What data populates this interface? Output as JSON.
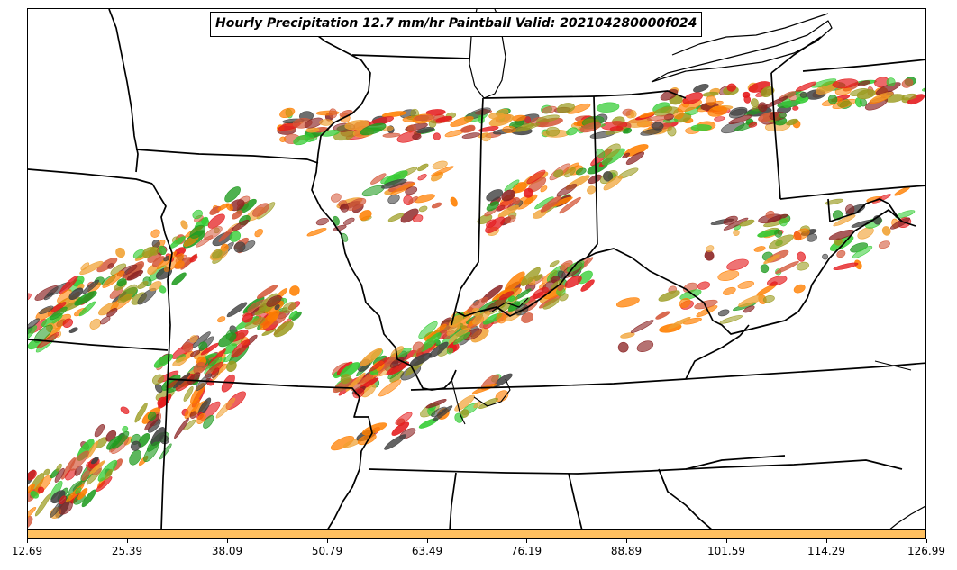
{
  "map": {
    "title": "Hourly Precipitation 12.7 mm/hr Paintball Valid: 202104280000f024",
    "colors": {
      "member_colors": [
        "#e41a1c",
        "#ff7f00",
        "#f0a030",
        "#9b9b20",
        "#1f9b1f",
        "#33cc33",
        "#8b2323",
        "#404040",
        "#d4583a"
      ],
      "boundary": "#000000",
      "background": "#ffffff"
    }
  },
  "colorbar": {
    "color": "#ffc060",
    "ticks": [
      "12.69",
      "25.39",
      "38.09",
      "50.79",
      "63.49",
      "76.19",
      "88.89",
      "101.59",
      "114.29",
      "126.99"
    ]
  }
}
